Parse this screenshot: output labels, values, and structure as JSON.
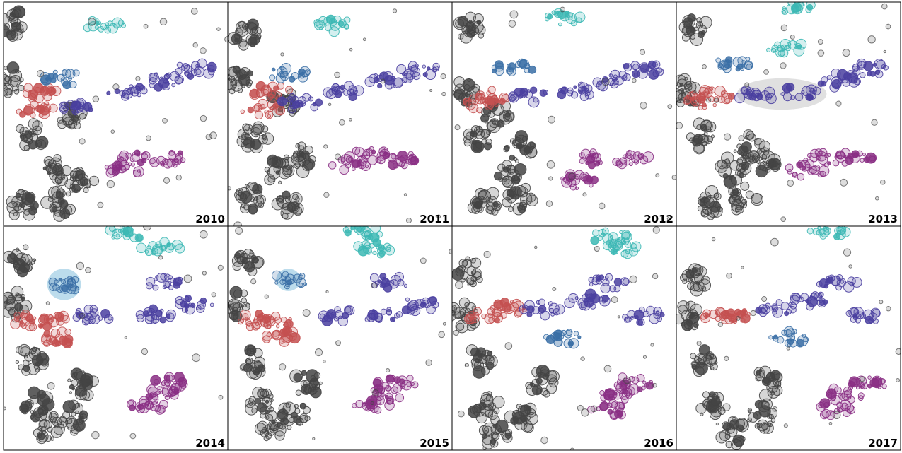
{
  "chart_data": {
    "type": "scatter",
    "layout": "small multiples, 2 rows x 4 columns",
    "encoding": "bubble chart; bubble size and colour encode cluster membership; grey bubbles are unclustered points",
    "x_domain": [
      0,
      100
    ],
    "y_domain": [
      0,
      100
    ],
    "panels": [
      {
        "year_label": "2010",
        "highlights": []
      },
      {
        "year_label": "2011",
        "highlights": []
      },
      {
        "year_label": "2012",
        "highlights": []
      },
      {
        "year_label": "2013",
        "highlights": [
          {
            "type": "ellipse",
            "color": "#e0e0e0",
            "cx": 47,
            "cy": 59,
            "rx": 20,
            "ry": 7
          }
        ]
      },
      {
        "year_label": "2014",
        "highlights": [
          {
            "type": "circle",
            "color": "#bcdcec",
            "cx": 27,
            "cy": 74,
            "rx": 7.5,
            "ry": 7
          }
        ]
      },
      {
        "year_label": "2015",
        "highlights": [
          {
            "type": "circle",
            "color": "#bcdcec",
            "cx": 27,
            "cy": 76,
            "rx": 5.5,
            "ry": 5
          }
        ]
      },
      {
        "year_label": "2016",
        "highlights": []
      },
      {
        "year_label": "2017",
        "highlights": []
      }
    ],
    "clusters": [
      {
        "name": "grey",
        "color": "#444444",
        "centers": [
          [
            [
              5,
              90
            ],
            [
              12,
              40
            ],
            [
              8,
              10
            ],
            [
              25,
              10
            ],
            [
              22,
              25
            ],
            [
              35,
              20
            ],
            [
              3,
              65
            ],
            [
              30,
              50
            ]
          ],
          [
            [
              8,
              85
            ],
            [
              12,
              40
            ],
            [
              10,
              12
            ],
            [
              28,
              10
            ],
            [
              22,
              25
            ],
            [
              32,
              30
            ],
            [
              5,
              65
            ],
            [
              25,
              55
            ]
          ],
          [
            [
              8,
              88
            ],
            [
              12,
              40
            ],
            [
              15,
              10
            ],
            [
              30,
              12
            ],
            [
              25,
              25
            ],
            [
              30,
              35
            ],
            [
              5,
              60
            ],
            [
              20,
              50
            ]
          ],
          [
            [
              8,
              88
            ],
            [
              12,
              40
            ],
            [
              15,
              10
            ],
            [
              30,
              12
            ],
            [
              25,
              25
            ],
            [
              32,
              35
            ],
            [
              5,
              60
            ],
            [
              40,
              30
            ]
          ],
          [
            [
              8,
              85
            ],
            [
              12,
              40
            ],
            [
              15,
              20
            ],
            [
              20,
              10
            ],
            [
              35,
              30
            ],
            [
              30,
              15
            ],
            [
              5,
              65
            ]
          ],
          [
            [
              8,
              85
            ],
            [
              12,
              40
            ],
            [
              15,
              20
            ],
            [
              20,
              10
            ],
            [
              35,
              30
            ],
            [
              30,
              15
            ],
            [
              5,
              65
            ]
          ],
          [
            [
              8,
              80
            ],
            [
              12,
              40
            ],
            [
              15,
              20
            ],
            [
              20,
              8
            ],
            [
              40,
              30
            ],
            [
              32,
              15
            ],
            [
              5,
              60
            ]
          ],
          [
            [
              8,
              75
            ],
            [
              12,
              40
            ],
            [
              15,
              20
            ],
            [
              25,
              8
            ],
            [
              40,
              30
            ],
            [
              38,
              15
            ],
            [
              5,
              60
            ]
          ]
        ]
      },
      {
        "name": "teal",
        "color": "#3cb8b4",
        "centers": [
          [
            [
              45,
              90
            ]
          ],
          [
            [
              48,
              90
            ]
          ],
          [
            [
              50,
              93
            ]
          ],
          [
            [
              53,
              97
            ],
            [
              48,
              80
            ]
          ],
          [
            [
              55,
              97
            ],
            [
              70,
              90
            ]
          ],
          [
            [
              60,
              97
            ],
            [
              65,
              90
            ]
          ],
          [
            [
              70,
              95
            ],
            [
              75,
              90
            ]
          ],
          [
            [
              68,
              97
            ]
          ]
        ]
      },
      {
        "name": "red",
        "color": "#c45050",
        "centers": [
          [
            [
              15,
              52
            ],
            [
              17,
              60
            ]
          ],
          [
            [
              15,
              52
            ],
            [
              20,
              60
            ]
          ],
          [
            [
              12,
              55
            ],
            [
              17,
              58
            ]
          ],
          [
            [
              12,
              56
            ],
            [
              17,
              58
            ]
          ],
          [
            [
              12,
              58
            ],
            [
              20,
              58
            ],
            [
              25,
              50
            ]
          ],
          [
            [
              12,
              58
            ],
            [
              20,
              58
            ],
            [
              25,
              50
            ]
          ],
          [
            [
              15,
              60
            ],
            [
              25,
              63
            ]
          ],
          [
            [
              20,
              60
            ],
            [
              25,
              60
            ]
          ]
        ]
      },
      {
        "name": "blue",
        "color": "#3a6fa6",
        "centers": [
          [
            [
              27,
              66
            ]
          ],
          [
            [
              27,
              68
            ]
          ],
          [
            [
              27,
              70
            ]
          ],
          [
            [
              27,
              73
            ]
          ],
          [
            [
              28,
              74
            ]
          ],
          [
            [
              28,
              76
            ]
          ],
          [
            [
              50,
              50
            ]
          ],
          [
            [
              50,
              50
            ]
          ]
        ]
      },
      {
        "name": "indigo",
        "color": "#4a3fa0",
        "centers": [
          [
            [
              55,
              60
            ],
            [
              72,
              65
            ],
            [
              85,
              70
            ],
            [
              32,
              53
            ]
          ],
          [
            [
              52,
              60
            ],
            [
              72,
              65
            ],
            [
              85,
              70
            ],
            [
              32,
              55
            ]
          ],
          [
            [
              55,
              60
            ],
            [
              72,
              65
            ],
            [
              85,
              70
            ],
            [
              35,
              58
            ]
          ],
          [
            [
              55,
              60
            ],
            [
              72,
              65
            ],
            [
              85,
              70
            ],
            [
              35,
              58
            ]
          ],
          [
            [
              40,
              60
            ],
            [
              68,
              60
            ],
            [
              85,
              65
            ],
            [
              72,
              75
            ]
          ],
          [
            [
              50,
              60
            ],
            [
              68,
              60
            ],
            [
              85,
              65
            ],
            [
              72,
              75
            ]
          ],
          [
            [
              40,
              63
            ],
            [
              60,
              67
            ],
            [
              85,
              60
            ],
            [
              70,
              75
            ]
          ],
          [
            [
              45,
              63
            ],
            [
              60,
              67
            ],
            [
              85,
              60
            ],
            [
              72,
              75
            ]
          ]
        ]
      },
      {
        "name": "purple",
        "color": "#8a2f84",
        "centers": [
          [
            [
              60,
              30
            ],
            [
              75,
              30
            ],
            [
              52,
              25
            ]
          ],
          [
            [
              63,
              32
            ],
            [
              78,
              30
            ],
            [
              55,
              28
            ]
          ],
          [
            [
              60,
              30
            ],
            [
              80,
              30
            ],
            [
              55,
              20
            ]
          ],
          [
            [
              65,
              30
            ],
            [
              80,
              30
            ],
            [
              58,
              25
            ]
          ],
          [
            [
              70,
              25
            ],
            [
              75,
              30
            ],
            [
              65,
              20
            ]
          ],
          [
            [
              70,
              25
            ],
            [
              75,
              30
            ],
            [
              65,
              20
            ]
          ],
          [
            [
              75,
              25
            ],
            [
              80,
              30
            ],
            [
              70,
              18
            ]
          ],
          [
            [
              75,
              25
            ],
            [
              85,
              30
            ],
            [
              70,
              18
            ]
          ]
        ]
      }
    ]
  }
}
